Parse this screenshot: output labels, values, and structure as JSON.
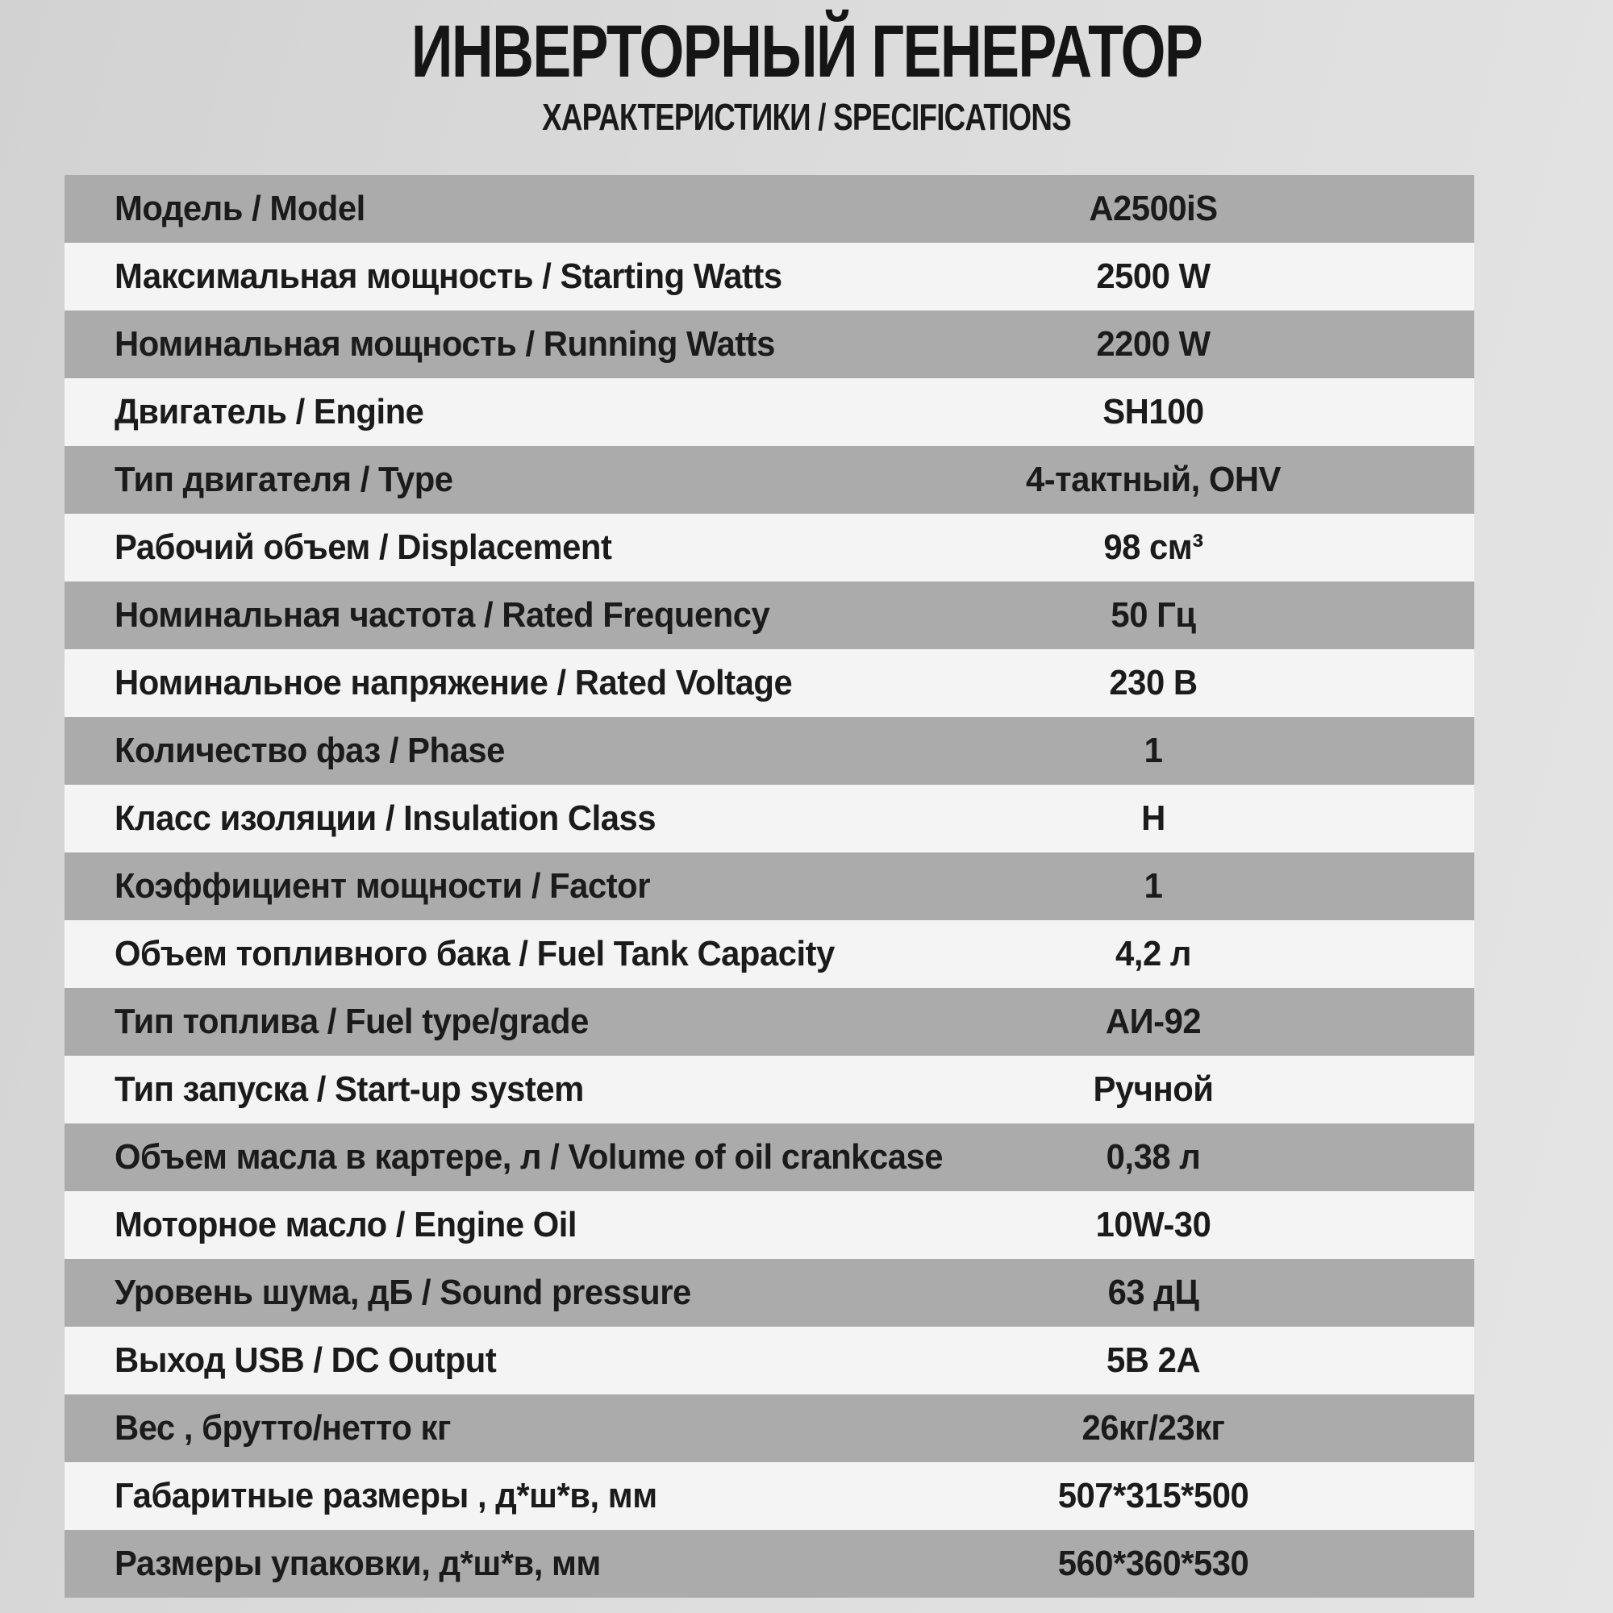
{
  "page": {
    "title": "ИНВЕРТОРНЫЙ ГЕНЕРАТОР",
    "subtitle": "ХАРАКТЕРИСТИКИ / SPECIFICATIONS"
  },
  "colors": {
    "row_gray": "#ababab",
    "row_light": "#f4f4f4",
    "text": "#1b1b1b"
  },
  "table": {
    "rows": [
      {
        "label": "Модель / Model",
        "value": "A2500iS"
      },
      {
        "label": "Максимальная мощность  / Starting Watts",
        "value": "2500 W"
      },
      {
        "label": "Номинальная мощность / Running Watts",
        "value": "2200 W"
      },
      {
        "label": "Двигатель / Engine",
        "value": "SH100"
      },
      {
        "label": "Тип двигателя / Type",
        "value": "4-тактный, OHV"
      },
      {
        "label": "Рабочий объем  / Displacement",
        "value": "98 см³"
      },
      {
        "label": "Номинальная частота  / Rated Frequency",
        "value": "50 Гц"
      },
      {
        "label": "Номинальное напряжение / Rated Voltage",
        "value": "230 В"
      },
      {
        "label": "Количество фаз / Phase",
        "value": "1"
      },
      {
        "label": "Класс изоляции / Insulation Class",
        "value": "H"
      },
      {
        "label": "Коэффициент мощности  / Factor",
        "value": "1"
      },
      {
        "label": "Объем топливного бака / Fuel Tank Capacity",
        "value": "4,2 л"
      },
      {
        "label": "Тип топлива / Fuel type/grade",
        "value": "АИ-92"
      },
      {
        "label": "Тип запуска / Start-up system",
        "value": "Ручной"
      },
      {
        "label": "Объем масла в картере, л / Volume of oil crankcase",
        "value": "0,38 л"
      },
      {
        "label": "Моторное масло / Engine Oil",
        "value": "10W-30"
      },
      {
        "label": "Уровень шума, дБ / Sound pressure",
        "value": "63 дЦ"
      },
      {
        "label": "Выход USB / DC Output",
        "value": "5В 2А"
      },
      {
        "label": "Вес , брутто/нетто кг",
        "value": "26кг/23кг"
      },
      {
        "label": "Габаритные размеры , д*ш*в, мм",
        "value": "507*315*500"
      },
      {
        "label": "Размеры упаковки, д*ш*в, мм",
        "value": "560*360*530"
      }
    ]
  }
}
